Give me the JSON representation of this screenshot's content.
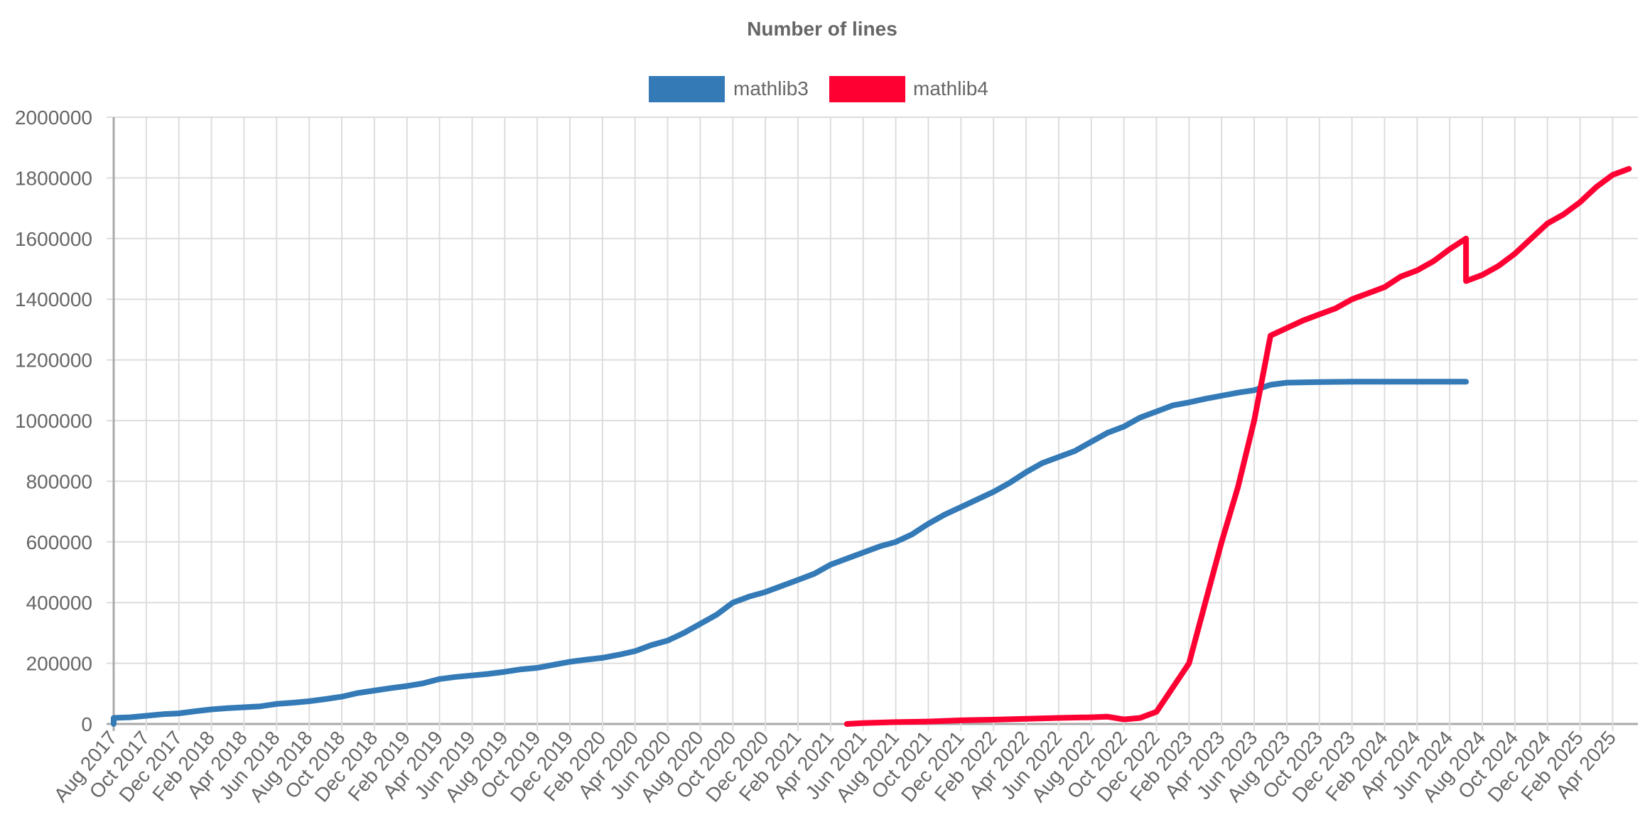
{
  "chart_data": {
    "type": "line",
    "title": "Number of lines",
    "xlabel": "",
    "ylabel": "",
    "legend_position": "top",
    "grid": true,
    "ylim": [
      0,
      2000000
    ],
    "xlim": [
      "2017-08",
      "2025-05"
    ],
    "y_ticks": [
      0,
      200000,
      400000,
      600000,
      800000,
      1000000,
      1200000,
      1400000,
      1600000,
      1800000,
      2000000
    ],
    "x_ticks": [
      "Aug 2017",
      "Oct 2017",
      "Dec 2017",
      "Feb 2018",
      "Apr 2018",
      "Jun 2018",
      "Aug 2018",
      "Oct 2018",
      "Dec 2018",
      "Feb 2019",
      "Apr 2019",
      "Jun 2019",
      "Aug 2019",
      "Oct 2019",
      "Dec 2019",
      "Feb 2020",
      "Apr 2020",
      "Jun 2020",
      "Aug 2020",
      "Oct 2020",
      "Dec 2020",
      "Feb 2021",
      "Apr 2021",
      "Jun 2021",
      "Aug 2021",
      "Oct 2021",
      "Dec 2021",
      "Feb 2022",
      "Apr 2022",
      "Jun 2022",
      "Aug 2022",
      "Oct 2022",
      "Dec 2022",
      "Feb 2023",
      "Apr 2023",
      "Jun 2023",
      "Aug 2023",
      "Oct 2023",
      "Dec 2023",
      "Feb 2024",
      "Apr 2024",
      "Jun 2024",
      "Aug 2024",
      "Oct 2024",
      "Dec 2024",
      "Feb 2025",
      "Apr 2025"
    ],
    "series": [
      {
        "name": "mathlib3",
        "color": "#337ab7",
        "points": [
          [
            "2017-08",
            0
          ],
          [
            "2017-08",
            20000
          ],
          [
            "2017-09",
            22000
          ],
          [
            "2017-10",
            27000
          ],
          [
            "2017-11",
            32000
          ],
          [
            "2017-12",
            35000
          ],
          [
            "2018-01",
            42000
          ],
          [
            "2018-02",
            48000
          ],
          [
            "2018-03",
            52000
          ],
          [
            "2018-04",
            55000
          ],
          [
            "2018-05",
            58000
          ],
          [
            "2018-06",
            66000
          ],
          [
            "2018-07",
            70000
          ],
          [
            "2018-08",
            75000
          ],
          [
            "2018-09",
            82000
          ],
          [
            "2018-10",
            90000
          ],
          [
            "2018-11",
            102000
          ],
          [
            "2018-12",
            110000
          ],
          [
            "2019-01",
            118000
          ],
          [
            "2019-02",
            125000
          ],
          [
            "2019-03",
            134000
          ],
          [
            "2019-04",
            148000
          ],
          [
            "2019-05",
            155000
          ],
          [
            "2019-06",
            160000
          ],
          [
            "2019-07",
            165000
          ],
          [
            "2019-08",
            172000
          ],
          [
            "2019-09",
            180000
          ],
          [
            "2019-10",
            185000
          ],
          [
            "2019-11",
            195000
          ],
          [
            "2019-12",
            205000
          ],
          [
            "2020-01",
            212000
          ],
          [
            "2020-02",
            218000
          ],
          [
            "2020-03",
            228000
          ],
          [
            "2020-04",
            240000
          ],
          [
            "2020-05",
            260000
          ],
          [
            "2020-06",
            275000
          ],
          [
            "2020-07",
            300000
          ],
          [
            "2020-08",
            330000
          ],
          [
            "2020-09",
            360000
          ],
          [
            "2020-10",
            400000
          ],
          [
            "2020-11",
            420000
          ],
          [
            "2020-12",
            435000
          ],
          [
            "2021-01",
            455000
          ],
          [
            "2021-02",
            475000
          ],
          [
            "2021-03",
            495000
          ],
          [
            "2021-04",
            525000
          ],
          [
            "2021-05",
            545000
          ],
          [
            "2021-06",
            565000
          ],
          [
            "2021-07",
            585000
          ],
          [
            "2021-08",
            600000
          ],
          [
            "2021-09",
            625000
          ],
          [
            "2021-10",
            660000
          ],
          [
            "2021-11",
            690000
          ],
          [
            "2021-12",
            715000
          ],
          [
            "2022-01",
            740000
          ],
          [
            "2022-02",
            765000
          ],
          [
            "2022-03",
            795000
          ],
          [
            "2022-04",
            830000
          ],
          [
            "2022-05",
            860000
          ],
          [
            "2022-06",
            880000
          ],
          [
            "2022-07",
            900000
          ],
          [
            "2022-08",
            930000
          ],
          [
            "2022-09",
            960000
          ],
          [
            "2022-10",
            980000
          ],
          [
            "2022-11",
            1010000
          ],
          [
            "2022-12",
            1030000
          ],
          [
            "2023-01",
            1050000
          ],
          [
            "2023-02",
            1060000
          ],
          [
            "2023-03",
            1072000
          ],
          [
            "2023-04",
            1082000
          ],
          [
            "2023-05",
            1092000
          ],
          [
            "2023-06",
            1100000
          ],
          [
            "2023-07",
            1118000
          ],
          [
            "2023-08",
            1125000
          ],
          [
            "2023-10",
            1127000
          ],
          [
            "2023-12",
            1128000
          ],
          [
            "2024-02",
            1128000
          ],
          [
            "2024-04",
            1128000
          ],
          [
            "2024-06",
            1128000
          ],
          [
            "2024-07",
            1128000
          ]
        ]
      },
      {
        "name": "mathlib4",
        "color": "#ff0033",
        "points": [
          [
            "2021-05",
            0
          ],
          [
            "2021-06",
            3000
          ],
          [
            "2021-08",
            6000
          ],
          [
            "2021-10",
            8000
          ],
          [
            "2021-12",
            12000
          ],
          [
            "2022-02",
            14000
          ],
          [
            "2022-04",
            17000
          ],
          [
            "2022-06",
            20000
          ],
          [
            "2022-08",
            22000
          ],
          [
            "2022-09",
            24000
          ],
          [
            "2022-10",
            15000
          ],
          [
            "2022-11",
            20000
          ],
          [
            "2022-12",
            40000
          ],
          [
            "2023-01",
            120000
          ],
          [
            "2023-02",
            200000
          ],
          [
            "2023-03",
            400000
          ],
          [
            "2023-04",
            600000
          ],
          [
            "2023-05",
            780000
          ],
          [
            "2023-06",
            1000000
          ],
          [
            "2023-07",
            1280000
          ],
          [
            "2023-08",
            1305000
          ],
          [
            "2023-09",
            1330000
          ],
          [
            "2023-10",
            1350000
          ],
          [
            "2023-11",
            1370000
          ],
          [
            "2023-12",
            1400000
          ],
          [
            "2024-01",
            1420000
          ],
          [
            "2024-02",
            1440000
          ],
          [
            "2024-03",
            1475000
          ],
          [
            "2024-04",
            1495000
          ],
          [
            "2024-05",
            1525000
          ],
          [
            "2024-06",
            1565000
          ],
          [
            "2024-07",
            1600000
          ],
          [
            "2024-07",
            1460000
          ],
          [
            "2024-08",
            1480000
          ],
          [
            "2024-09",
            1510000
          ],
          [
            "2024-10",
            1550000
          ],
          [
            "2024-11",
            1600000
          ],
          [
            "2024-12",
            1650000
          ],
          [
            "2025-01",
            1680000
          ],
          [
            "2025-02",
            1720000
          ],
          [
            "2025-03",
            1770000
          ],
          [
            "2025-04",
            1810000
          ],
          [
            "2025-05",
            1830000
          ]
        ]
      }
    ]
  }
}
